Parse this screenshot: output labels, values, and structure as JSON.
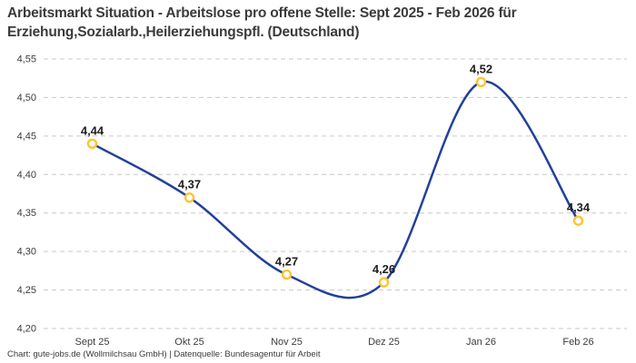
{
  "header": {
    "title": "Arbeitsmarkt Situation - Arbeitslose pro offene Stelle: Sept 2025 - Feb 2026 für\nErziehung,Sozialarb.,Heilerziehungspfl. (Deutschland)"
  },
  "footer": {
    "text": "Chart: gute-jobs.de (Wollmilchsau GmbH) | Datenquelle: Bundesagentur für Arbeit"
  },
  "colors": {
    "line": "#22409a",
    "marker_stroke": "#ffc430",
    "marker_fill": "#ffffff",
    "grid": "#c9c9c9",
    "title_text": "#3b3b3b",
    "tick_text": "#3c3c3c",
    "point_label_text": "#1f1f1f"
  },
  "chart_data": {
    "type": "line",
    "line_style": "spline",
    "marker": "open-circle",
    "grid": "horizontal-dashed",
    "legend": "none",
    "title": "Arbeitsmarkt Situation - Arbeitslose pro offene Stelle: Sept 2025 - Feb 2026 für Erziehung,Sozialarb.,Heilerziehungspfl. (Deutschland)",
    "xlabel": "",
    "ylabel": "",
    "categories": [
      "Sept 25",
      "Okt 25",
      "Nov 25",
      "Dez 25",
      "Jan 26",
      "Feb 26"
    ],
    "values": [
      4.44,
      4.37,
      4.27,
      4.26,
      4.52,
      4.34
    ],
    "point_labels": [
      "4,44",
      "4,37",
      "4,27",
      "4,26",
      "4,52",
      "4,34"
    ],
    "ylim": [
      4.2,
      4.55
    ],
    "yticks": [
      4.2,
      4.25,
      4.3,
      4.35,
      4.4,
      4.45,
      4.5,
      4.55
    ],
    "ytick_labels": [
      "4,20",
      "4,25",
      "4,30",
      "4,35",
      "4,40",
      "4,45",
      "4,50",
      "4,55"
    ]
  }
}
